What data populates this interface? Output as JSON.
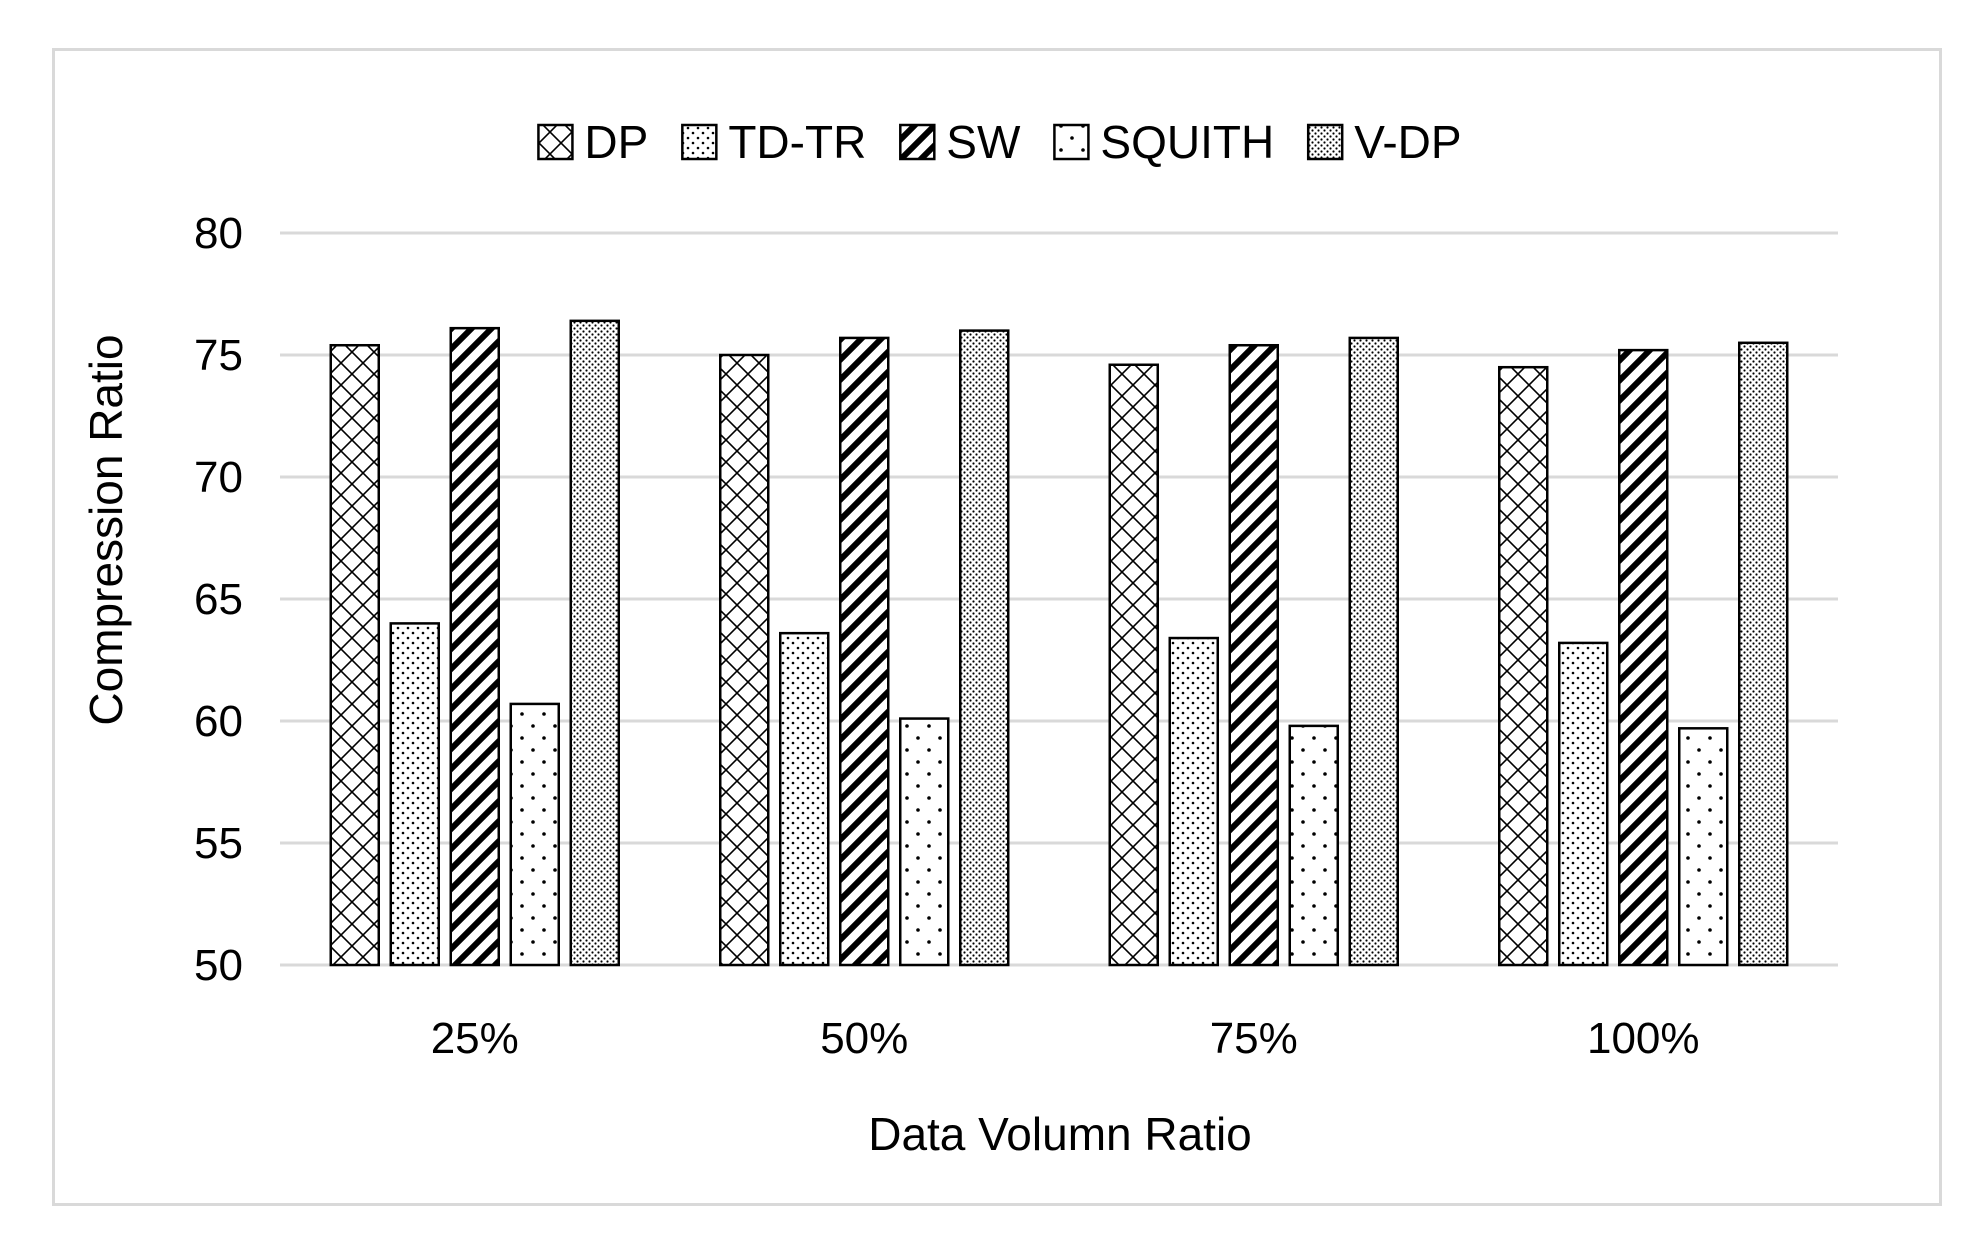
{
  "chart_data": {
    "type": "bar",
    "title": "",
    "xlabel": "Data Volumn Ratio",
    "ylabel": "Compression Ratio",
    "categories": [
      "25%",
      "50%",
      "75%",
      "100%"
    ],
    "ylim": [
      50,
      80
    ],
    "yticks": [
      50,
      55,
      60,
      65,
      70,
      75,
      80
    ],
    "grid": true,
    "legend_position": "top-center",
    "series": [
      {
        "name": "DP",
        "pattern": "crosshatch",
        "values": [
          75.4,
          75.0,
          74.6,
          74.5
        ]
      },
      {
        "name": "TD-TR",
        "pattern": "fine-dots",
        "values": [
          64.0,
          63.6,
          63.4,
          63.2
        ]
      },
      {
        "name": "SW",
        "pattern": "diagonal-stripes",
        "values": [
          76.1,
          75.7,
          75.4,
          75.2
        ]
      },
      {
        "name": "SQUITH",
        "pattern": "sparse-dots",
        "values": [
          60.7,
          60.1,
          59.8,
          59.7
        ]
      },
      {
        "name": "V-DP",
        "pattern": "dense-dots",
        "values": [
          76.4,
          76.0,
          75.7,
          75.5
        ]
      }
    ],
    "colors": {
      "bar_stroke": "#000000",
      "grid": "#d9d9d9",
      "background": "#ffffff"
    }
  }
}
